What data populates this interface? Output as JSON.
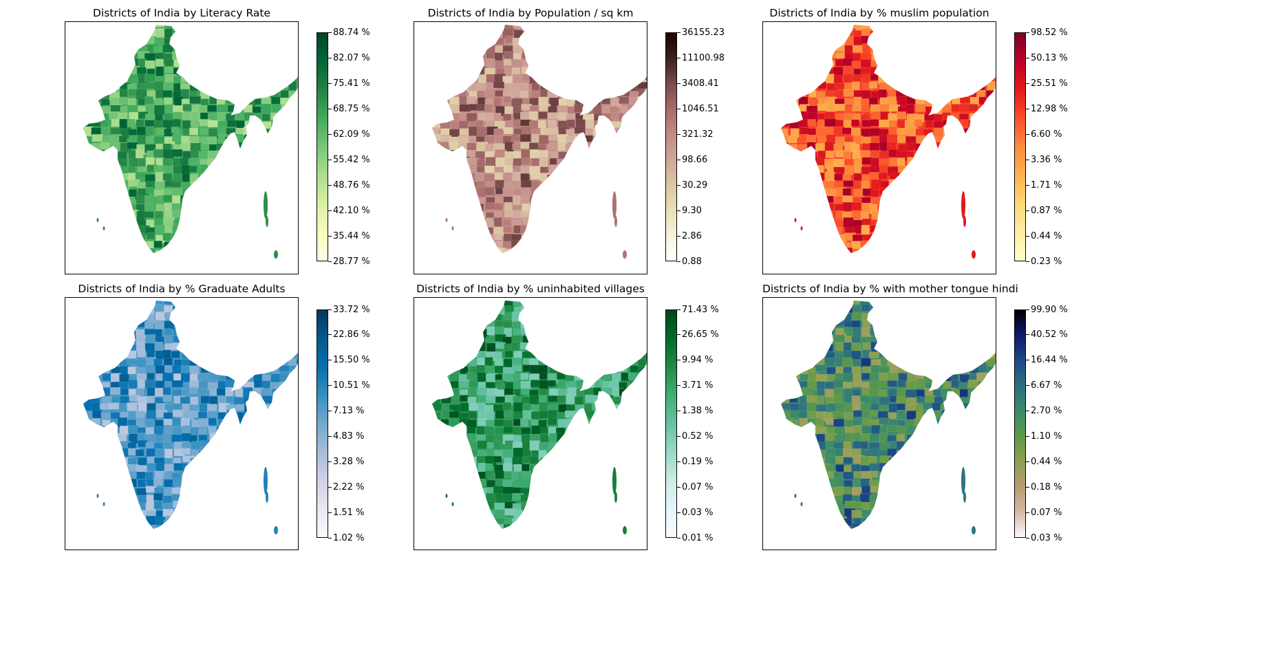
{
  "figure": {
    "panels": [
      {
        "title": "Districts of India by Literacy Rate",
        "colormap": "Greens",
        "colors": [
          "#ffffe5",
          "#f7fcb9",
          "#d9f0a3",
          "#addd8e",
          "#78c679",
          "#41ab5d",
          "#238443",
          "#006837",
          "#004529"
        ],
        "map_tone": 0.62,
        "ticks": [
          "88.74 %",
          "82.07 %",
          "75.41 %",
          "68.75 %",
          "62.09 %",
          "55.42 %",
          "48.76 %",
          "42.10 %",
          "35.44 %",
          "28.77 %"
        ]
      },
      {
        "title": "Districts of India by Population / sq km",
        "colormap": "pink_r",
        "colors": [
          "#ffffff",
          "#f5f3dd",
          "#e7e1b5",
          "#dcc6a3",
          "#cfa69a",
          "#c18b86",
          "#a86c6c",
          "#7a4b4b",
          "#3b2020",
          "#1e0000"
        ],
        "map_tone": 0.55,
        "ticks": [
          "36155.23",
          "11100.98",
          "3408.41",
          "1046.51",
          "321.32",
          "98.66",
          "30.29",
          "9.30",
          "2.86",
          "0.88"
        ]
      },
      {
        "title": "Districts of India by % muslim population",
        "colormap": "YlOrRd",
        "colors": [
          "#ffffcc",
          "#ffeda0",
          "#fed976",
          "#feb24c",
          "#fd8d3c",
          "#fc4e2a",
          "#e31a1c",
          "#bd0026",
          "#800026"
        ],
        "map_tone": 0.66,
        "ticks": [
          "98.52 %",
          "50.13 %",
          "25.51 %",
          "12.98 %",
          "6.60 %",
          "3.36 %",
          "1.71 %",
          "0.87 %",
          "0.44 %",
          "0.23 %"
        ]
      },
      {
        "title": "Districts of India by % Graduate Adults",
        "colormap": "PuBu",
        "colors": [
          "#fff7fb",
          "#ece7f2",
          "#d0d1e6",
          "#a6bddb",
          "#74a9cf",
          "#3690c0",
          "#0570b0",
          "#045a8d",
          "#023858"
        ],
        "map_tone": 0.58,
        "ticks": [
          "33.72 %",
          "22.86 %",
          "15.50 %",
          "10.51 %",
          "7.13 %",
          "4.83 %",
          "3.28 %",
          "2.22 %",
          "1.51 %",
          "1.02 %"
        ]
      },
      {
        "title": "Districts of India by % uninhabited villages",
        "colormap": "BuGn",
        "colors": [
          "#f7fcfd",
          "#e5f5f9",
          "#ccece6",
          "#99d8c9",
          "#66c2a4",
          "#41ae76",
          "#238b45",
          "#006d2c",
          "#00441b"
        ],
        "map_tone": 0.7,
        "ticks": [
          "71.43 %",
          "26.65 %",
          "9.94 %",
          "3.71 %",
          "1.38 %",
          "0.52 %",
          "0.19 %",
          "0.07 %",
          "0.03 %",
          "0.01 %"
        ]
      },
      {
        "title": "Districts of India by % with mother tongue hindi",
        "colormap": "gist_earth_r",
        "colors": [
          "#fdfbfb",
          "#d8b7a6",
          "#b79e70",
          "#8fa052",
          "#5f9a44",
          "#3c8a6a",
          "#2c6f80",
          "#1c4a86",
          "#0e1a6e",
          "#000000"
        ],
        "map_tone": 0.55,
        "ticks": [
          "99.90 %",
          "40.52 %",
          "16.44 %",
          "6.67 %",
          "2.70 %",
          "1.10 %",
          "0.44 %",
          "0.18 %",
          "0.07 %",
          "0.03 %"
        ]
      }
    ]
  }
}
